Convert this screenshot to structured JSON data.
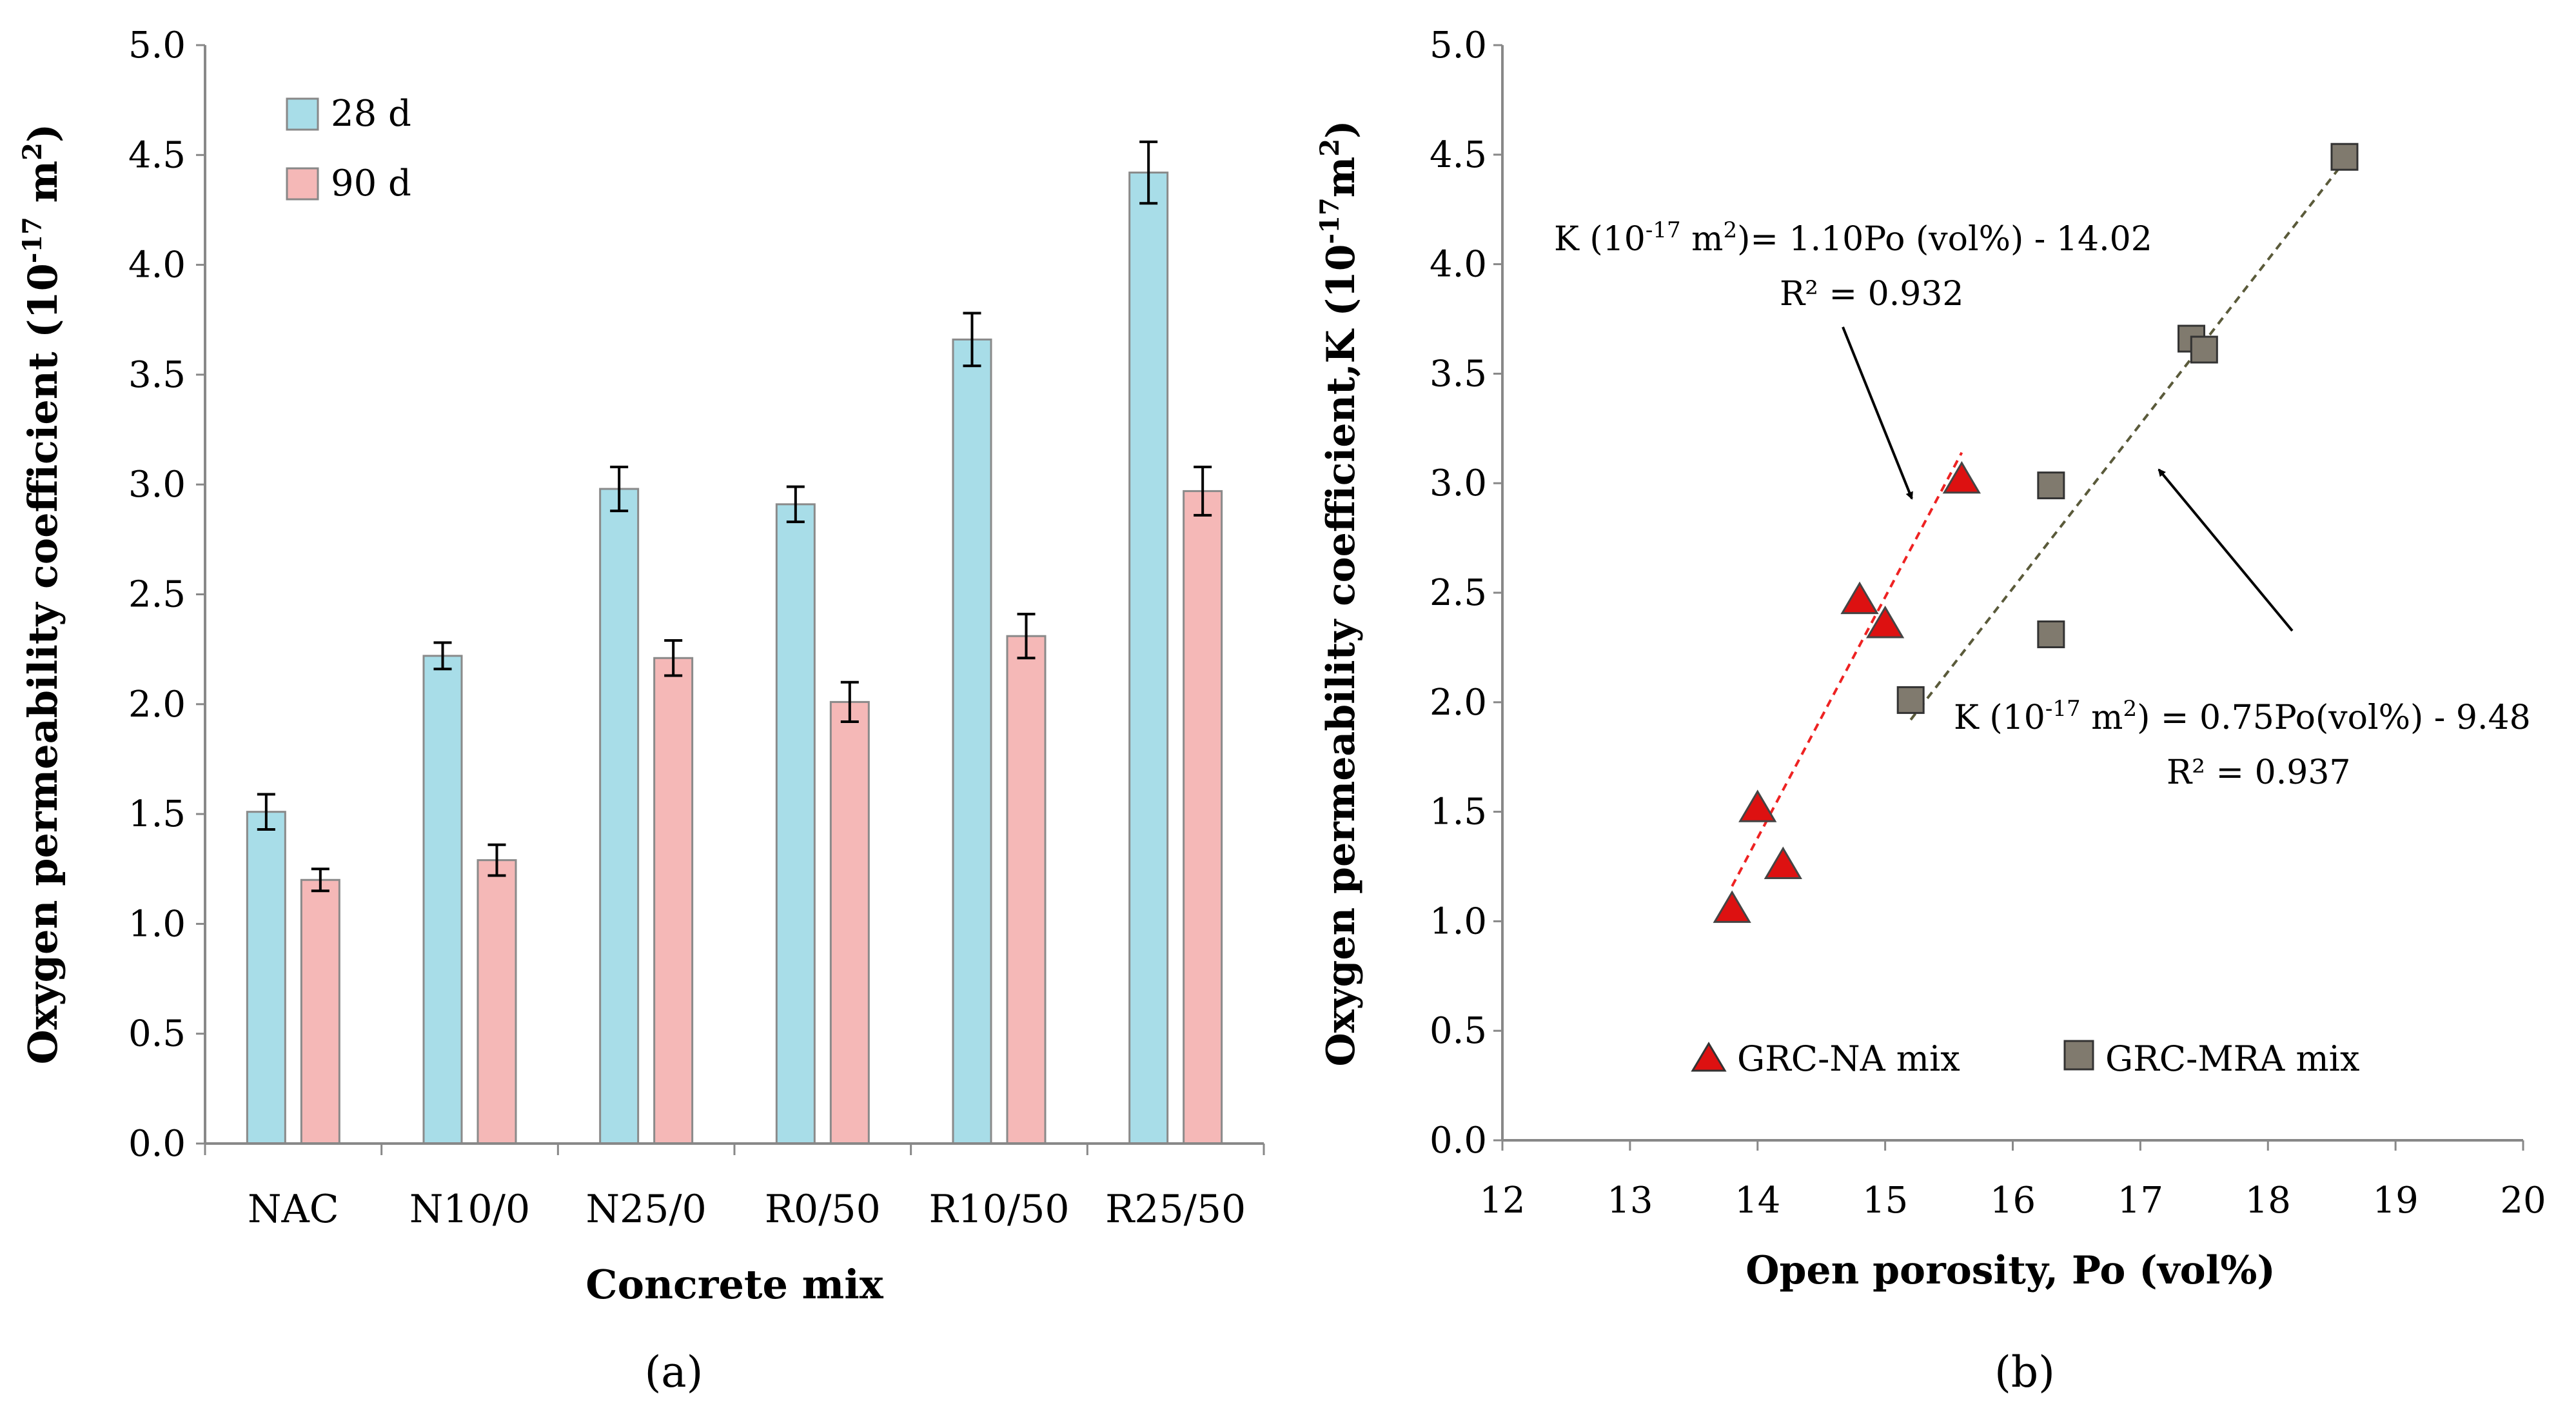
{
  "chart_data": [
    {
      "type": "bar",
      "panel_label": "(a)",
      "xlabel": "Concrete mix",
      "ylabel_parts": [
        "Oxygen permeability coefficient (10",
        "-17",
        " m",
        "2",
        ")"
      ],
      "ylim": [
        0,
        5.0
      ],
      "yticks": [
        "0.0",
        "0.5",
        "1.0",
        "1.5",
        "2.0",
        "2.5",
        "3.0",
        "3.5",
        "4.0",
        "4.5",
        "5.0"
      ],
      "categories": [
        "NAC",
        "N10/0",
        "N25/0",
        "R0/50",
        "R10/50",
        "R25/50"
      ],
      "legend_position": "top-left",
      "series": [
        {
          "name": "28 d",
          "color": "#a8dde8",
          "values": [
            1.51,
            2.22,
            2.98,
            2.91,
            3.66,
            4.42
          ],
          "errors": [
            0.08,
            0.06,
            0.1,
            0.08,
            0.12,
            0.14
          ]
        },
        {
          "name": "90 d",
          "color": "#f5b8b7",
          "values": [
            1.2,
            1.29,
            2.21,
            2.01,
            2.31,
            2.97
          ],
          "errors": [
            0.05,
            0.07,
            0.08,
            0.09,
            0.1,
            0.11
          ]
        }
      ]
    },
    {
      "type": "scatter",
      "panel_label": "(b)",
      "xlabel": "Open porosity, Po (vol%)",
      "ylabel_parts": [
        "Oxygen permeability coefficient,K (10",
        "-17",
        "m",
        "2",
        ")"
      ],
      "xlim": [
        12,
        20
      ],
      "ylim": [
        0,
        5.0
      ],
      "xticks": [
        "12",
        "13",
        "14",
        "15",
        "16",
        "17",
        "18",
        "19",
        "20"
      ],
      "yticks": [
        "0.0",
        "0.5",
        "1.0",
        "1.5",
        "2.0",
        "2.5",
        "3.0",
        "3.5",
        "4.0",
        "4.5",
        "5.0"
      ],
      "legend_position": "bottom",
      "series": [
        {
          "name": "GRC-NA mix",
          "marker": "triangle",
          "color": "#dd1111",
          "points": [
            [
              13.8,
              1.05
            ],
            [
              14.0,
              1.51
            ],
            [
              14.2,
              1.25
            ],
            [
              14.8,
              2.46
            ],
            [
              15.0,
              2.35
            ],
            [
              15.6,
              3.01
            ]
          ],
          "trend": {
            "x": [
              13.8,
              15.6
            ],
            "slope": 1.1,
            "intercept": -14.02,
            "color": "#ee2222"
          }
        },
        {
          "name": "GRC-MRA mix",
          "marker": "square",
          "color": "#807a6e",
          "points": [
            [
              15.2,
              2.01
            ],
            [
              16.3,
              2.99
            ],
            [
              16.3,
              2.31
            ],
            [
              17.4,
              3.66
            ],
            [
              17.5,
              3.61
            ],
            [
              18.6,
              4.49
            ]
          ],
          "trend": {
            "x": [
              15.2,
              18.6
            ],
            "slope": 0.75,
            "intercept": -9.48,
            "color": "#5a5a3a"
          }
        }
      ],
      "annotations": [
        {
          "line1_parts": [
            "K (10",
            "-17",
            " m",
            "2",
            ")= 1.10Po (vol%) - 14.02"
          ],
          "line2": "R² = 0.932"
        },
        {
          "line1_parts": [
            "K (10",
            "-17",
            " m",
            "2",
            ") = 0.75Po(vol%) - 9.48"
          ],
          "line2": "R² = 0.937"
        }
      ]
    }
  ]
}
